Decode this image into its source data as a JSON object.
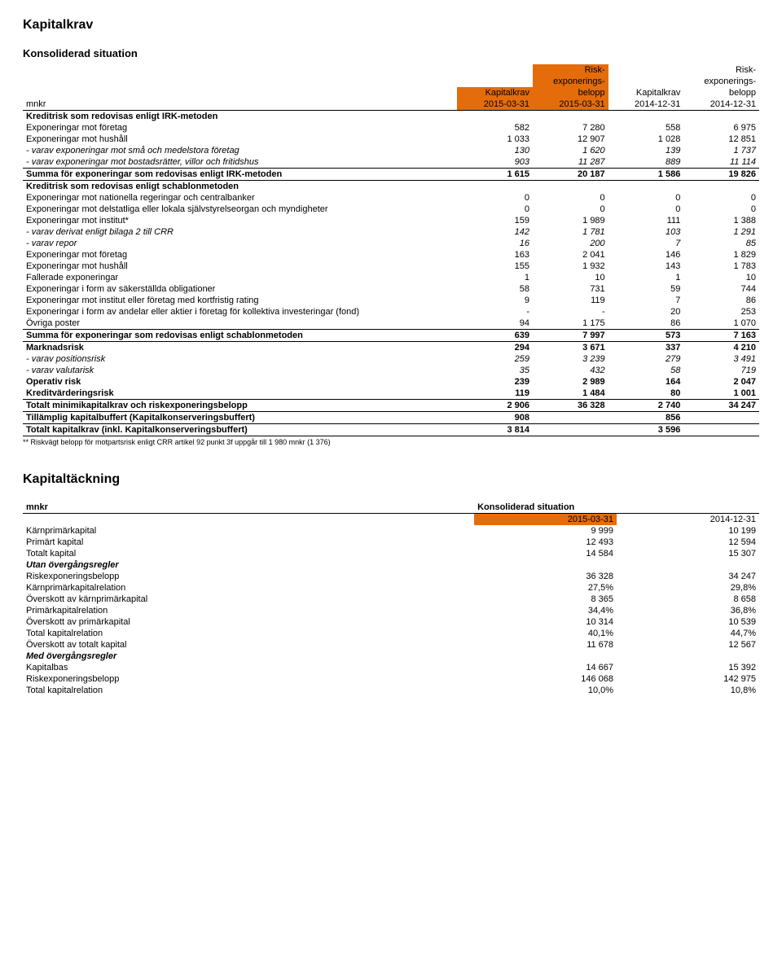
{
  "title1": "Kapitalkrav",
  "subtitle1": "Konsoliderad situation",
  "headers1": {
    "risk_line1": "Risk-",
    "risk_line2": "exponerings-",
    "kapitalkrav": "Kapitalkrav",
    "belopp": "belopp",
    "mnkr": "mnkr",
    "d1": "2015-03-31",
    "d2": "2015-03-31",
    "d3": "2014-12-31",
    "d4": "2014-12-31"
  },
  "colors": {
    "orange": "#e46c0a"
  },
  "rows1": [
    {
      "label": "Kreditrisk som redovisas enligt IRK-metoden",
      "v": [
        "",
        "",
        "",
        ""
      ],
      "style": "bold bt"
    },
    {
      "label": "Exponeringar mot företag",
      "v": [
        "582",
        "7 280",
        "558",
        "6 975"
      ]
    },
    {
      "label": "Exponeringar mot hushåll",
      "v": [
        "1 033",
        "12 907",
        "1 028",
        "12 851"
      ]
    },
    {
      "label": " - varav exponeringar mot små och medelstora företag",
      "v": [
        "130",
        "1 620",
        "139",
        "1 737"
      ],
      "style": "ital"
    },
    {
      "label": " - varav exponeringar mot bostadsrätter, villor och fritidshus",
      "v": [
        "903",
        "11 287",
        "889",
        "11 114"
      ],
      "style": "ital"
    },
    {
      "label": "Summa för exponeringar som redovisas enligt IRK-metoden",
      "v": [
        "1 615",
        "20 187",
        "1 586",
        "19 826"
      ],
      "style": "bold bt bb"
    },
    {
      "label": "Kreditrisk som redovisas enligt schablonmetoden",
      "v": [
        "",
        "",
        "",
        ""
      ],
      "style": "bold"
    },
    {
      "label": "Exponeringar mot nationella regeringar och centralbanker",
      "v": [
        "0",
        "0",
        "0",
        "0"
      ]
    },
    {
      "label": "Exponeringar mot delstatliga eller lokala självstyrelseorgan och myndigheter",
      "v": [
        "0",
        "0",
        "0",
        "0"
      ]
    },
    {
      "label": "Exponeringar mot institut*",
      "v": [
        "159",
        "1 989",
        "111",
        "1 388"
      ]
    },
    {
      "label": " - varav derivat enligt bilaga 2 till CRR",
      "v": [
        "142",
        "1 781",
        "103",
        "1 291"
      ],
      "style": "ital"
    },
    {
      "label": " - varav repor",
      "v": [
        "16",
        "200",
        "7",
        "85"
      ],
      "style": "ital"
    },
    {
      "label": "Exponeringar mot företag",
      "v": [
        "163",
        "2 041",
        "146",
        "1 829"
      ]
    },
    {
      "label": "Exponeringar mot hushåll",
      "v": [
        "155",
        "1 932",
        "143",
        "1 783"
      ]
    },
    {
      "label": "Fallerade exponeringar",
      "v": [
        "1",
        "10",
        "1",
        "10"
      ]
    },
    {
      "label": "Exponeringar i form av säkerställda obligationer",
      "v": [
        "58",
        "731",
        "59",
        "744"
      ]
    },
    {
      "label": "Exponeringar mot institut eller företag med kortfristig rating",
      "v": [
        "9",
        "119",
        "7",
        "86"
      ]
    },
    {
      "label": "Exponeringar i form av andelar eller aktier i företag för kollektiva investeringar (fond)",
      "v": [
        "-",
        "-",
        "20",
        "253"
      ]
    },
    {
      "label": "Övriga poster",
      "v": [
        "94",
        "1 175",
        "86",
        "1 070"
      ]
    },
    {
      "label": "Summa för exponeringar som redovisas enligt schablonmetoden",
      "v": [
        "639",
        "7 997",
        "573",
        "7 163"
      ],
      "style": "bold bt bb"
    },
    {
      "label": "Marknadsrisk",
      "v": [
        "294",
        "3 671",
        "337",
        "4 210"
      ],
      "style": "bold"
    },
    {
      "label": " - varav positionsrisk",
      "v": [
        "259",
        "3 239",
        "279",
        "3 491"
      ],
      "style": "ital"
    },
    {
      "label": " - varav valutarisk",
      "v": [
        "35",
        "432",
        "58",
        "719"
      ],
      "style": "ital"
    },
    {
      "label": "Operativ risk",
      "v": [
        "239",
        "2 989",
        "164",
        "2 047"
      ],
      "style": "bold"
    },
    {
      "label": "Kreditvärderingsrisk",
      "v": [
        "119",
        "1 484",
        "80",
        "1 001"
      ],
      "style": "bold"
    },
    {
      "label": "Totalt minimikapitalkrav och riskexponeringsbelopp",
      "v": [
        "2 906",
        "36 328",
        "2 740",
        "34 247"
      ],
      "style": "bold bt bb"
    },
    {
      "label": "Tillämplig kapitalbuffert (Kapitalkonserveringsbuffert)",
      "v": [
        "908",
        "",
        "856",
        ""
      ],
      "style": "bold bb"
    },
    {
      "label": "Totalt kapitalkrav (inkl. Kapitalkonserveringsbuffert)",
      "v": [
        "3 814",
        "",
        "3 596",
        ""
      ],
      "style": "bold bb"
    }
  ],
  "footnote": "** Riskvägt belopp för motpartsrisk enligt CRR artikel 92 punkt 3f uppgår till 1 980 mnkr (1 376)",
  "title2": "Kapitaltäckning",
  "headers2": {
    "mnkr": "mnkr",
    "konsol": "Konsoliderad situation",
    "d1": "2015-03-31",
    "d2": "2014-12-31"
  },
  "rows2": [
    {
      "label": "Kärnprimärkapital",
      "v": [
        "9 999",
        "10 199"
      ]
    },
    {
      "label": "Primärt kapital",
      "v": [
        "12 493",
        "12 594"
      ]
    },
    {
      "label": "Totalt kapital",
      "v": [
        "14 584",
        "15 307"
      ]
    },
    {
      "label": "Utan övergångsregler",
      "v": [
        "",
        ""
      ],
      "style": "bold ital"
    },
    {
      "label": "Riskexponeringsbelopp",
      "v": [
        "36 328",
        "34 247"
      ]
    },
    {
      "label": "Kärnprimärkapitalrelation",
      "v": [
        "27,5%",
        "29,8%"
      ]
    },
    {
      "label": "Överskott av kärnprimärkapital",
      "v": [
        "8 365",
        "8 658"
      ]
    },
    {
      "label": "Primärkapitalrelation",
      "v": [
        "34,4%",
        "36,8%"
      ]
    },
    {
      "label": "Överskott av primärkapital",
      "v": [
        "10 314",
        "10 539"
      ]
    },
    {
      "label": "Total kapitalrelation",
      "v": [
        "40,1%",
        "44,7%"
      ]
    },
    {
      "label": "Överskott av totalt kapital",
      "v": [
        "11 678",
        "12 567"
      ]
    },
    {
      "label": "Med övergångsregler",
      "v": [
        "",
        ""
      ],
      "style": "bold ital"
    },
    {
      "label": "Kapitalbas",
      "v": [
        "14 667",
        "15 392"
      ]
    },
    {
      "label": "Riskexponeringsbelopp",
      "v": [
        "146 068",
        "142 975"
      ]
    },
    {
      "label": "Total kapitalrelation",
      "v": [
        "10,0%",
        "10,8%"
      ]
    }
  ]
}
